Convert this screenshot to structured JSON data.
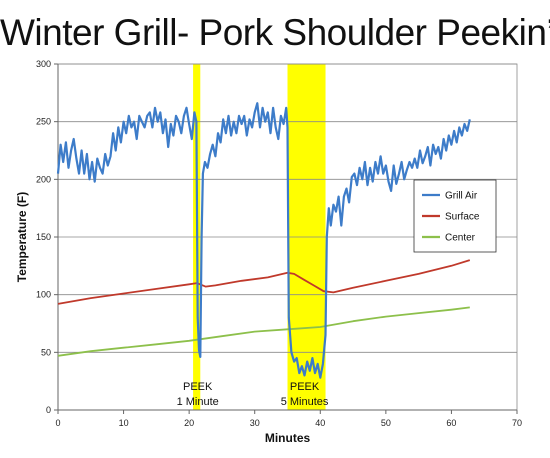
{
  "chart_data": {
    "type": "line",
    "title": "Winter Grill- Pork Shoulder Peekin’",
    "xlabel": "Minutes",
    "ylabel": "Temperature (F)",
    "xlim": [
      0,
      70
    ],
    "ylim": [
      0,
      300
    ],
    "xticks": [
      0,
      10,
      20,
      30,
      40,
      50,
      60,
      70
    ],
    "yticks": [
      0,
      50,
      100,
      150,
      200,
      250,
      300
    ],
    "grid": "horizontal",
    "legend_position": "right",
    "highlights": [
      {
        "x_start": 20.6,
        "x_end": 21.7,
        "color": "#ffff00"
      },
      {
        "x_start": 35.0,
        "x_end": 40.8,
        "color": "#ffff00"
      }
    ],
    "annotations": [
      {
        "lines": [
          "PEEK",
          "1 Minute"
        ],
        "x": 21.3
      },
      {
        "lines": [
          "PEEK",
          "5 Minutes"
        ],
        "x": 37.6
      }
    ],
    "series": [
      {
        "name": "Grill Air",
        "color": "#3d7cc9",
        "points": [
          [
            0,
            205
          ],
          [
            0.4,
            230
          ],
          [
            0.8,
            215
          ],
          [
            1.2,
            232
          ],
          [
            1.6,
            210
          ],
          [
            2.0,
            225
          ],
          [
            2.4,
            235
          ],
          [
            2.8,
            218
          ],
          [
            3.2,
            205
          ],
          [
            3.6,
            225
          ],
          [
            4.0,
            205
          ],
          [
            4.4,
            222
          ],
          [
            4.8,
            200
          ],
          [
            5.2,
            215
          ],
          [
            5.6,
            198
          ],
          [
            6.0,
            218
          ],
          [
            6.4,
            210
          ],
          [
            6.8,
            205
          ],
          [
            7.2,
            222
          ],
          [
            7.6,
            212
          ],
          [
            8.0,
            220
          ],
          [
            8.4,
            240
          ],
          [
            8.8,
            225
          ],
          [
            9.2,
            245
          ],
          [
            9.6,
            232
          ],
          [
            10.0,
            250
          ],
          [
            10.4,
            240
          ],
          [
            10.8,
            255
          ],
          [
            11.2,
            245
          ],
          [
            11.6,
            250
          ],
          [
            12.0,
            235
          ],
          [
            12.4,
            255
          ],
          [
            12.8,
            250
          ],
          [
            13.2,
            245
          ],
          [
            13.6,
            255
          ],
          [
            14.0,
            258
          ],
          [
            14.4,
            245
          ],
          [
            14.8,
            262
          ],
          [
            15.2,
            250
          ],
          [
            15.6,
            258
          ],
          [
            16.0,
            240
          ],
          [
            16.4,
            252
          ],
          [
            16.8,
            228
          ],
          [
            17.2,
            248
          ],
          [
            17.6,
            238
          ],
          [
            18.0,
            255
          ],
          [
            18.4,
            250
          ],
          [
            18.8,
            240
          ],
          [
            19.2,
            255
          ],
          [
            19.6,
            262
          ],
          [
            20.0,
            248
          ],
          [
            20.4,
            235
          ],
          [
            20.8,
            258
          ],
          [
            21.1,
            250
          ],
          [
            21.3,
            80
          ],
          [
            21.5,
            52
          ],
          [
            21.7,
            46
          ],
          [
            21.9,
            150
          ],
          [
            22.1,
            205
          ],
          [
            22.4,
            215
          ],
          [
            22.8,
            210
          ],
          [
            23.2,
            222
          ],
          [
            23.6,
            230
          ],
          [
            24.0,
            220
          ],
          [
            24.4,
            240
          ],
          [
            24.8,
            232
          ],
          [
            25.2,
            252
          ],
          [
            25.6,
            240
          ],
          [
            26.0,
            255
          ],
          [
            26.4,
            238
          ],
          [
            26.8,
            250
          ],
          [
            27.2,
            240
          ],
          [
            27.6,
            255
          ],
          [
            28.0,
            248
          ],
          [
            28.4,
            255
          ],
          [
            28.8,
            238
          ],
          [
            29.2,
            252
          ],
          [
            29.6,
            245
          ],
          [
            30.0,
            258
          ],
          [
            30.4,
            266
          ],
          [
            30.8,
            245
          ],
          [
            31.2,
            262
          ],
          [
            31.6,
            250
          ],
          [
            32.0,
            258
          ],
          [
            32.4,
            240
          ],
          [
            32.8,
            262
          ],
          [
            33.2,
            245
          ],
          [
            33.6,
            235
          ],
          [
            34.0,
            255
          ],
          [
            34.4,
            248
          ],
          [
            34.8,
            262
          ],
          [
            35.0,
            245
          ],
          [
            35.2,
            80
          ],
          [
            35.6,
            50
          ],
          [
            36.0,
            42
          ],
          [
            36.4,
            45
          ],
          [
            36.8,
            32
          ],
          [
            37.2,
            38
          ],
          [
            37.6,
            30
          ],
          [
            38.0,
            42
          ],
          [
            38.4,
            34
          ],
          [
            38.8,
            45
          ],
          [
            39.2,
            32
          ],
          [
            39.6,
            40
          ],
          [
            40.0,
            28
          ],
          [
            40.4,
            40
          ],
          [
            40.8,
            65
          ],
          [
            41.0,
            150
          ],
          [
            41.3,
            175
          ],
          [
            41.6,
            160
          ],
          [
            42.0,
            178
          ],
          [
            42.4,
            172
          ],
          [
            42.8,
            185
          ],
          [
            43.2,
            160
          ],
          [
            43.6,
            185
          ],
          [
            44.0,
            192
          ],
          [
            44.4,
            180
          ],
          [
            44.8,
            202
          ],
          [
            45.2,
            205
          ],
          [
            45.6,
            195
          ],
          [
            46.0,
            210
          ],
          [
            46.4,
            200
          ],
          [
            46.8,
            215
          ],
          [
            47.2,
            195
          ],
          [
            47.6,
            210
          ],
          [
            48.0,
            198
          ],
          [
            48.4,
            215
          ],
          [
            48.8,
            205
          ],
          [
            49.2,
            220
          ],
          [
            49.6,
            205
          ],
          [
            50.0,
            212
          ],
          [
            50.4,
            198
          ],
          [
            50.8,
            190
          ],
          [
            51.2,
            212
          ],
          [
            51.6,
            196
          ],
          [
            52.0,
            205
          ],
          [
            52.4,
            215
          ],
          [
            52.8,
            200
          ],
          [
            53.2,
            208
          ],
          [
            53.6,
            215
          ],
          [
            54.0,
            210
          ],
          [
            54.4,
            218
          ],
          [
            54.8,
            210
          ],
          [
            55.2,
            225
          ],
          [
            55.6,
            214
          ],
          [
            56.0,
            220
          ],
          [
            56.4,
            228
          ],
          [
            56.8,
            212
          ],
          [
            57.2,
            230
          ],
          [
            57.6,
            222
          ],
          [
            58.0,
            228
          ],
          [
            58.4,
            218
          ],
          [
            58.8,
            235
          ],
          [
            59.2,
            225
          ],
          [
            59.6,
            238
          ],
          [
            60.0,
            230
          ],
          [
            60.4,
            242
          ],
          [
            60.8,
            232
          ],
          [
            61.2,
            245
          ],
          [
            61.6,
            238
          ],
          [
            62.0,
            248
          ],
          [
            62.4,
            242
          ],
          [
            62.8,
            252
          ]
        ]
      },
      {
        "name": "Surface",
        "color": "#c0392b",
        "points": [
          [
            0,
            92
          ],
          [
            5,
            97
          ],
          [
            10,
            101
          ],
          [
            15,
            105
          ],
          [
            20,
            109
          ],
          [
            21.2,
            110
          ],
          [
            22.5,
            107
          ],
          [
            24,
            108
          ],
          [
            28,
            112
          ],
          [
            32,
            115
          ],
          [
            35,
            119
          ],
          [
            36,
            118
          ],
          [
            37.5,
            113
          ],
          [
            39,
            108
          ],
          [
            40.5,
            103
          ],
          [
            42,
            102
          ],
          [
            45,
            106
          ],
          [
            50,
            112
          ],
          [
            55,
            118
          ],
          [
            60,
            125
          ],
          [
            62.8,
            130
          ]
        ]
      },
      {
        "name": "Center",
        "color": "#8dc04b",
        "points": [
          [
            0,
            47
          ],
          [
            5,
            51
          ],
          [
            10,
            54
          ],
          [
            15,
            57
          ],
          [
            20,
            60
          ],
          [
            25,
            64
          ],
          [
            30,
            68
          ],
          [
            35,
            70
          ],
          [
            40,
            72
          ],
          [
            45,
            77
          ],
          [
            50,
            81
          ],
          [
            55,
            84
          ],
          [
            60,
            87
          ],
          [
            62.8,
            89
          ]
        ]
      }
    ]
  }
}
